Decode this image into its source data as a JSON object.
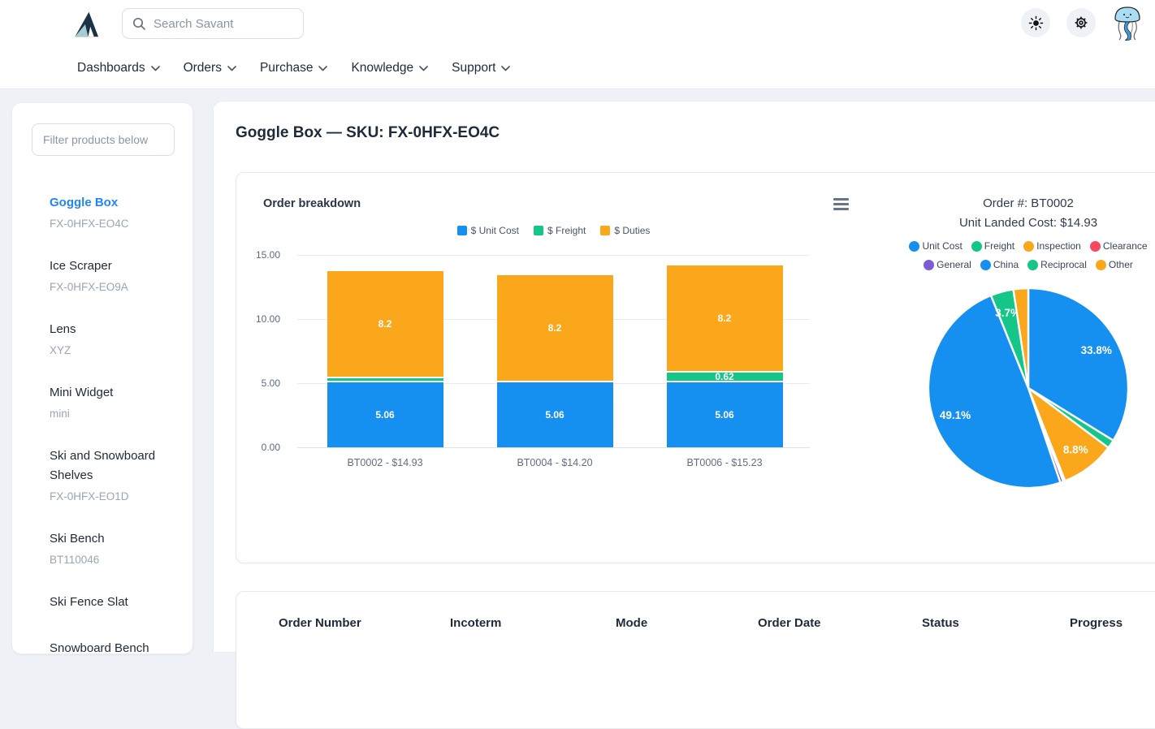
{
  "header": {
    "search_placeholder": "Search Savant",
    "nav": [
      {
        "label": "Dashboards"
      },
      {
        "label": "Orders"
      },
      {
        "label": "Purchase"
      },
      {
        "label": "Knowledge"
      },
      {
        "label": "Support"
      }
    ]
  },
  "sidebar": {
    "filter_placeholder": "Filter products below",
    "products": [
      {
        "name": "Goggle Box",
        "code": "FX-0HFX-EO4C",
        "active": true
      },
      {
        "name": "Ice Scraper",
        "code": "FX-0HFX-EO9A",
        "active": false
      },
      {
        "name": "Lens",
        "code": "XYZ",
        "active": false
      },
      {
        "name": "Mini Widget",
        "code": "mini",
        "active": false
      },
      {
        "name": "Ski and Snowboard Shelves",
        "code": "FX-0HFX-EO1D",
        "active": false
      },
      {
        "name": "Ski Bench",
        "code": "BT110046",
        "active": false
      },
      {
        "name": "Ski Fence Slat",
        "code": "",
        "active": false
      },
      {
        "name": "Snowboard Bench",
        "code": "",
        "active": false
      }
    ]
  },
  "page": {
    "title": "Goggle Box — SKU: FX-0HFX-EO4C"
  },
  "chart_card": {
    "title": "Order breakdown"
  },
  "table": {
    "columns": [
      "Order Number",
      "Incoterm",
      "Mode",
      "Order Date",
      "Status",
      "Progress"
    ]
  },
  "chart_data": [
    {
      "type": "bar",
      "stacked": true,
      "title": "Order breakdown",
      "categories": [
        "BT0002 - $14.93",
        "BT0004 - $14.20",
        "BT0006 - $15.23"
      ],
      "series": [
        {
          "name": "$ Unit Cost",
          "color": "#1590f0",
          "values": [
            5.06,
            5.06,
            5.06
          ],
          "labels": [
            "5.06",
            "5.06",
            "5.06"
          ]
        },
        {
          "name": "$ Freight",
          "color": "#15c689",
          "values": [
            0.2,
            0,
            0.62
          ],
          "labels": [
            "",
            "",
            "0.62"
          ]
        },
        {
          "name": "$ Duties",
          "color": "#faa71b",
          "values": [
            8.2,
            8.2,
            8.2
          ],
          "labels": [
            "8.2",
            "8.2",
            "8.2"
          ]
        }
      ],
      "ylim": [
        0,
        15
      ],
      "ytick_step": 5,
      "ytick_labels": [
        "0.00",
        "5.00",
        "10.00",
        "15.00"
      ],
      "grid": true,
      "legend_position": "top"
    },
    {
      "type": "pie",
      "title": "Order #: BT0002",
      "subtitle": "Unit Landed Cost: $14.93",
      "legend_position": "top",
      "slices": [
        {
          "name": "Unit Cost",
          "color": "#1590f0",
          "pct": 33.8,
          "label": "33.8%"
        },
        {
          "name": "Freight",
          "color": "#15c689",
          "pct": 1.4,
          "label": ""
        },
        {
          "name": "Inspection",
          "color": "#faa71b",
          "pct": 8.8,
          "label": "8.8%"
        },
        {
          "name": "Clearance",
          "color": "#f8485e",
          "pct": 0.3,
          "label": ""
        },
        {
          "name": "General",
          "color": "#7b5bd6",
          "pct": 0.5,
          "label": ""
        },
        {
          "name": "China",
          "color": "#1590f0",
          "pct": 49.1,
          "label": "49.1%"
        },
        {
          "name": "Reciprocal",
          "color": "#15c689",
          "pct": 3.7,
          "label": "3.7%"
        },
        {
          "name": "Other",
          "color": "#faa71b",
          "pct": 2.4,
          "label": ""
        }
      ]
    }
  ]
}
